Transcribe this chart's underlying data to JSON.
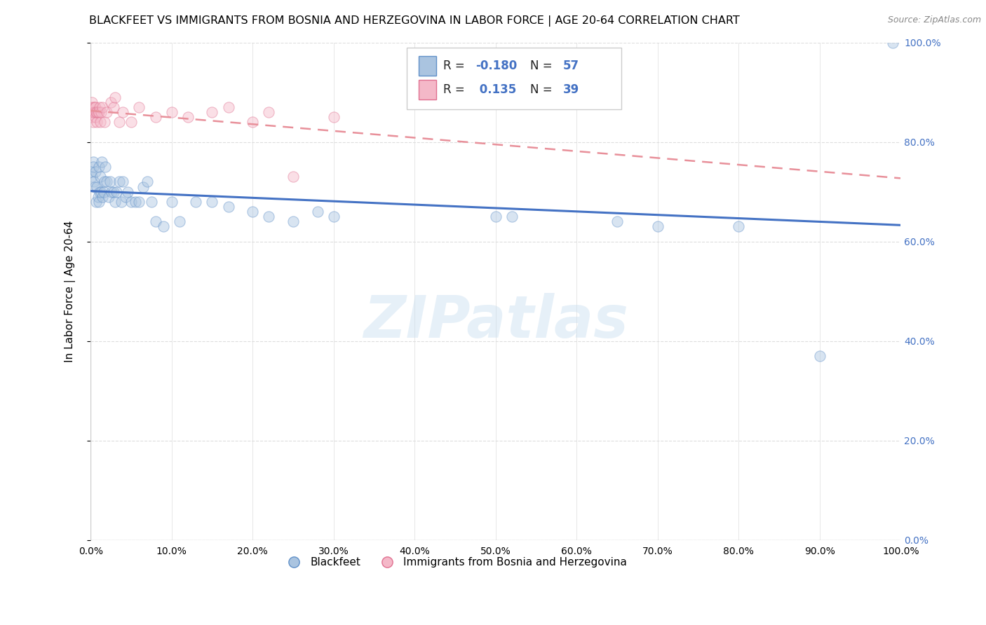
{
  "title": "BLACKFEET VS IMMIGRANTS FROM BOSNIA AND HERZEGOVINA IN LABOR FORCE | AGE 20-64 CORRELATION CHART",
  "source": "Source: ZipAtlas.com",
  "ylabel": "In Labor Force | Age 20-64",
  "xlim": [
    0,
    1
  ],
  "ylim": [
    0,
    1
  ],
  "blue_R": -0.18,
  "blue_N": 57,
  "pink_R": 0.135,
  "pink_N": 39,
  "blue_color": "#aac4e0",
  "pink_color": "#f4b8c8",
  "blue_edge_color": "#6090c8",
  "pink_edge_color": "#e07090",
  "blue_line_color": "#4472c4",
  "pink_line_color": "#e8909a",
  "watermark": "ZIPatlas",
  "blue_scatter_x": [
    0.001,
    0.002,
    0.003,
    0.003,
    0.004,
    0.005,
    0.006,
    0.007,
    0.008,
    0.009,
    0.01,
    0.01,
    0.011,
    0.012,
    0.013,
    0.014,
    0.015,
    0.016,
    0.017,
    0.018,
    0.02,
    0.022,
    0.024,
    0.026,
    0.028,
    0.03,
    0.032,
    0.035,
    0.038,
    0.04,
    0.043,
    0.046,
    0.05,
    0.055,
    0.06,
    0.065,
    0.07,
    0.075,
    0.08,
    0.09,
    0.1,
    0.11,
    0.13,
    0.15,
    0.17,
    0.2,
    0.22,
    0.25,
    0.28,
    0.3,
    0.5,
    0.52,
    0.65,
    0.7,
    0.8,
    0.9,
    0.99
  ],
  "blue_scatter_y": [
    0.74,
    0.73,
    0.76,
    0.75,
    0.72,
    0.71,
    0.74,
    0.68,
    0.71,
    0.69,
    0.75,
    0.68,
    0.7,
    0.73,
    0.7,
    0.76,
    0.69,
    0.7,
    0.72,
    0.75,
    0.72,
    0.69,
    0.72,
    0.7,
    0.7,
    0.68,
    0.7,
    0.72,
    0.68,
    0.72,
    0.69,
    0.7,
    0.68,
    0.68,
    0.68,
    0.71,
    0.72,
    0.68,
    0.64,
    0.63,
    0.68,
    0.64,
    0.68,
    0.68,
    0.67,
    0.66,
    0.65,
    0.64,
    0.66,
    0.65,
    0.65,
    0.65,
    0.64,
    0.63,
    0.63,
    0.37,
    1.0
  ],
  "pink_scatter_x": [
    0.001,
    0.001,
    0.002,
    0.002,
    0.003,
    0.003,
    0.004,
    0.004,
    0.005,
    0.005,
    0.006,
    0.006,
    0.007,
    0.008,
    0.008,
    0.009,
    0.01,
    0.011,
    0.012,
    0.013,
    0.015,
    0.017,
    0.02,
    0.025,
    0.028,
    0.03,
    0.035,
    0.04,
    0.05,
    0.06,
    0.08,
    0.1,
    0.12,
    0.15,
    0.17,
    0.2,
    0.22,
    0.25,
    0.3
  ],
  "pink_scatter_y": [
    0.87,
    0.86,
    0.88,
    0.85,
    0.87,
    0.84,
    0.86,
    0.86,
    0.87,
    0.86,
    0.87,
    0.85,
    0.86,
    0.86,
    0.84,
    0.86,
    0.86,
    0.87,
    0.84,
    0.86,
    0.87,
    0.84,
    0.86,
    0.88,
    0.87,
    0.89,
    0.84,
    0.86,
    0.84,
    0.87,
    0.85,
    0.86,
    0.85,
    0.86,
    0.87,
    0.84,
    0.86,
    0.73,
    0.85
  ],
  "grid_color": "#dddddd",
  "background_color": "#ffffff",
  "title_fontsize": 11.5,
  "axis_label_fontsize": 11,
  "tick_fontsize": 10,
  "marker_size": 120,
  "marker_alpha": 0.45,
  "marker_lw": 0.8
}
